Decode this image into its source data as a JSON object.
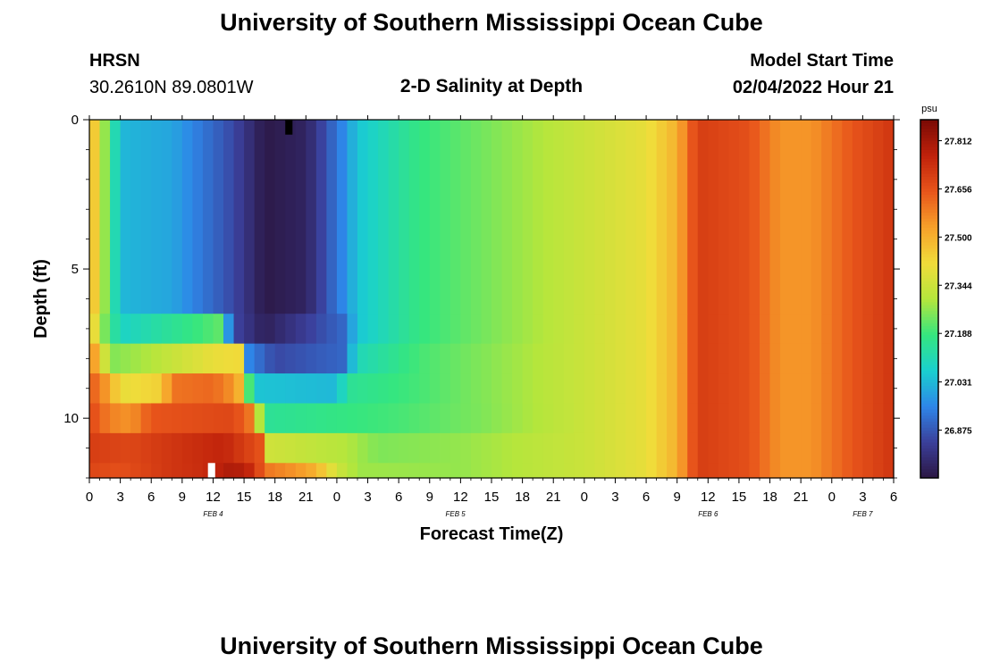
{
  "header": {
    "title": "University of Southern Mississippi Ocean Cube",
    "station_name": "HRSN",
    "station_coords": "30.2610N  89.0801W",
    "plot_title": "2-D Salinity at Depth",
    "model_start_label": "Model Start Time",
    "model_start_value": "02/04/2022 Hour 21"
  },
  "footer": {
    "title": "University of Southern Mississippi Ocean Cube"
  },
  "chart_data": {
    "type": "heatmap",
    "title": "2-D Salinity at Depth",
    "xlabel": "Forecast Time(Z)",
    "ylabel": "Depth (ft)",
    "ylim": [
      0,
      12
    ],
    "y_ticks": [
      "0",
      "5",
      "10"
    ],
    "y_tick_values": [
      0,
      5,
      10
    ],
    "x_range_hours": [
      0,
      78
    ],
    "x_tick_labels": [
      "0",
      "3",
      "6",
      "9",
      "12",
      "15",
      "18",
      "21",
      "0",
      "3",
      "6",
      "9",
      "12",
      "15",
      "18",
      "21",
      "0",
      "3",
      "6",
      "9",
      "12",
      "15",
      "18",
      "21",
      "0",
      "3",
      "6"
    ],
    "day_labels": [
      {
        "label": "FEB 4",
        "hour": 12
      },
      {
        "label": "FEB 5",
        "hour": 35.5
      },
      {
        "label": "FEB 6",
        "hour": 60
      },
      {
        "label": "FEB 7",
        "hour": 75
      }
    ],
    "colorbar": {
      "unit": "psu",
      "min": 26.72,
      "max": 27.88,
      "ticks": [
        "27.812",
        "27.656",
        "27.500",
        "27.344",
        "27.188",
        "27.031",
        "26.875"
      ],
      "tick_values": [
        27.812,
        27.656,
        27.5,
        27.344,
        27.188,
        27.031,
        26.875
      ],
      "colors": [
        "#2b1642",
        "#3b3f9a",
        "#2e86e8",
        "#1ad0cf",
        "#35e67f",
        "#b5e63c",
        "#f0dc3a",
        "#f7a12a",
        "#e8551b",
        "#c0220b",
        "#7a0a05"
      ]
    },
    "depth_layers": [
      {
        "from": 0,
        "to": 6.5,
        "keypoints": [
          [
            0,
            27.55
          ],
          [
            1,
            27.35
          ],
          [
            3,
            27.03
          ],
          [
            8,
            27.0
          ],
          [
            14,
            26.85
          ],
          [
            17,
            26.73
          ],
          [
            21,
            26.76
          ],
          [
            24.5,
            26.95
          ],
          [
            26,
            27.05
          ],
          [
            32,
            27.18
          ],
          [
            40,
            27.26
          ],
          [
            48,
            27.34
          ],
          [
            54,
            27.4
          ],
          [
            57,
            27.5
          ],
          [
            59,
            27.7
          ],
          [
            64,
            27.66
          ],
          [
            67,
            27.55
          ],
          [
            70,
            27.55
          ],
          [
            74,
            27.65
          ],
          [
            78,
            27.72
          ]
        ]
      },
      {
        "from": 6.5,
        "to": 7.5,
        "keypoints": [
          [
            0,
            27.5
          ],
          [
            1,
            27.3
          ],
          [
            3,
            27.08
          ],
          [
            10,
            27.18
          ],
          [
            12.5,
            27.22
          ],
          [
            14,
            26.85
          ],
          [
            17,
            26.75
          ],
          [
            24.5,
            26.9
          ],
          [
            26,
            27.05
          ],
          [
            32,
            27.18
          ],
          [
            40,
            27.26
          ],
          [
            48,
            27.34
          ],
          [
            54,
            27.4
          ],
          [
            57,
            27.5
          ],
          [
            59,
            27.7
          ],
          [
            64,
            27.66
          ],
          [
            67,
            27.55
          ],
          [
            70,
            27.55
          ],
          [
            74,
            27.65
          ],
          [
            78,
            27.72
          ]
        ]
      },
      {
        "from": 7.5,
        "to": 8.5,
        "keypoints": [
          [
            0,
            27.6
          ],
          [
            1,
            27.45
          ],
          [
            2,
            27.25
          ],
          [
            6,
            27.3
          ],
          [
            12,
            27.4
          ],
          [
            14.5,
            27.42
          ],
          [
            15.5,
            26.95
          ],
          [
            18,
            26.85
          ],
          [
            24.5,
            26.9
          ],
          [
            26,
            27.1
          ],
          [
            32,
            27.2
          ],
          [
            40,
            27.27
          ],
          [
            48,
            27.34
          ],
          [
            54,
            27.4
          ],
          [
            57,
            27.5
          ],
          [
            59,
            27.7
          ],
          [
            64,
            27.66
          ],
          [
            67,
            27.55
          ],
          [
            70,
            27.55
          ],
          [
            74,
            27.65
          ],
          [
            78,
            27.72
          ]
        ]
      },
      {
        "from": 8.5,
        "to": 9.5,
        "keypoints": [
          [
            0,
            27.65
          ],
          [
            2,
            27.52
          ],
          [
            3,
            27.4
          ],
          [
            7,
            27.44
          ],
          [
            8,
            27.6
          ],
          [
            12,
            27.62
          ],
          [
            14,
            27.55
          ],
          [
            15,
            27.45
          ],
          [
            15.5,
            27.2
          ],
          [
            16,
            27.05
          ],
          [
            24,
            27.03
          ],
          [
            25,
            27.15
          ],
          [
            32,
            27.2
          ],
          [
            40,
            27.27
          ],
          [
            48,
            27.34
          ],
          [
            54,
            27.4
          ],
          [
            57,
            27.5
          ],
          [
            59,
            27.7
          ],
          [
            64,
            27.66
          ],
          [
            67,
            27.55
          ],
          [
            70,
            27.55
          ],
          [
            74,
            27.65
          ],
          [
            78,
            27.72
          ]
        ]
      },
      {
        "from": 9.5,
        "to": 10.5,
        "keypoints": [
          [
            0,
            27.68
          ],
          [
            2,
            27.58
          ],
          [
            4,
            27.55
          ],
          [
            6,
            27.65
          ],
          [
            14,
            27.68
          ],
          [
            15.5,
            27.6
          ],
          [
            16.5,
            27.3
          ],
          [
            17,
            27.15
          ],
          [
            30,
            27.2
          ],
          [
            38,
            27.25
          ],
          [
            48,
            27.34
          ],
          [
            54,
            27.4
          ],
          [
            57,
            27.5
          ],
          [
            59,
            27.7
          ],
          [
            64,
            27.66
          ],
          [
            67,
            27.55
          ],
          [
            70,
            27.55
          ],
          [
            74,
            27.65
          ],
          [
            78,
            27.72
          ]
        ]
      },
      {
        "from": 10.5,
        "to": 11.5,
        "keypoints": [
          [
            0,
            27.7
          ],
          [
            4,
            27.68
          ],
          [
            8,
            27.72
          ],
          [
            13,
            27.76
          ],
          [
            16.5,
            27.66
          ],
          [
            17.5,
            27.35
          ],
          [
            25,
            27.3
          ],
          [
            28,
            27.25
          ],
          [
            36,
            27.27
          ],
          [
            48,
            27.34
          ],
          [
            54,
            27.4
          ],
          [
            57,
            27.5
          ],
          [
            59,
            27.7
          ],
          [
            64,
            27.66
          ],
          [
            67,
            27.55
          ],
          [
            70,
            27.55
          ],
          [
            74,
            27.65
          ],
          [
            78,
            27.72
          ]
        ]
      },
      {
        "from": 11.5,
        "to": 12,
        "keypoints": [
          [
            0,
            27.68
          ],
          [
            3,
            27.66
          ],
          [
            8,
            27.72
          ],
          [
            11,
            27.74
          ],
          [
            14,
            27.8
          ],
          [
            16,
            27.74
          ],
          [
            17,
            27.6
          ],
          [
            20,
            27.55
          ],
          [
            22,
            27.5
          ],
          [
            24,
            27.35
          ],
          [
            26,
            27.28
          ],
          [
            36,
            27.27
          ],
          [
            48,
            27.34
          ],
          [
            54,
            27.4
          ],
          [
            57,
            27.5
          ],
          [
            59,
            27.7
          ],
          [
            64,
            27.66
          ],
          [
            67,
            27.55
          ],
          [
            70,
            27.55
          ],
          [
            74,
            27.65
          ],
          [
            78,
            27.72
          ]
        ]
      }
    ],
    "missing_cells": [
      {
        "hour": 19,
        "depth_from": 0,
        "depth_to": 0.5,
        "fill": "#000000"
      },
      {
        "hour": 11.5,
        "depth_from": 11.5,
        "depth_to": 12,
        "fill": "#ffffff"
      }
    ]
  }
}
